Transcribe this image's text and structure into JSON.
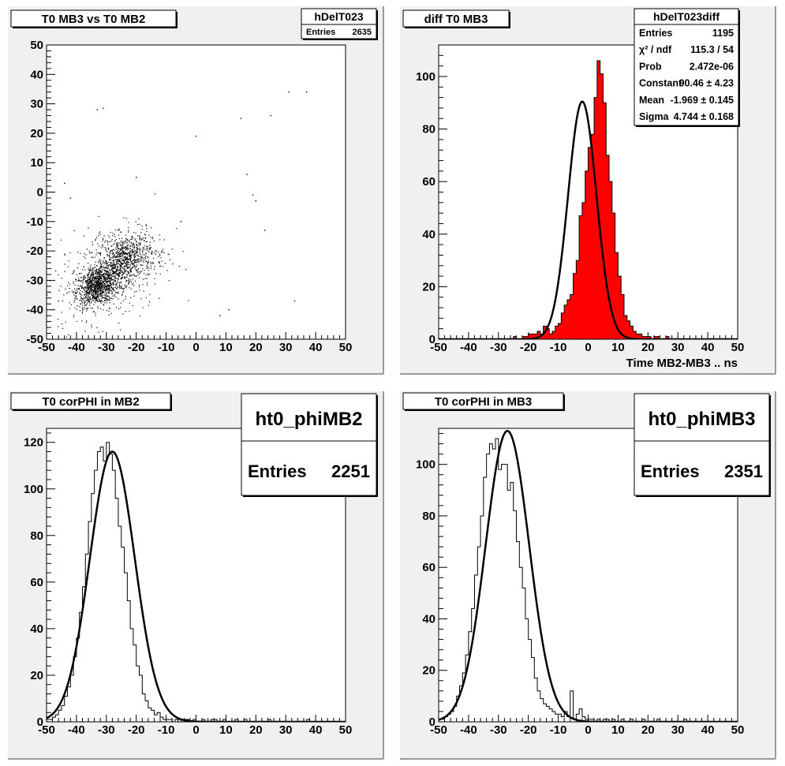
{
  "chart_data": [
    {
      "type": "scatter",
      "title": "T0 MB3 vs T0 MB2",
      "xlim": [
        -50,
        50
      ],
      "ylim": [
        -50,
        50
      ],
      "xticks": [
        -50,
        -40,
        -30,
        -20,
        -10,
        0,
        10,
        20,
        30,
        40,
        50
      ],
      "yticks": [
        -50,
        -40,
        -30,
        -20,
        -10,
        0,
        10,
        20,
        30,
        40,
        50
      ],
      "stats": {
        "name": "hDelT023",
        "rows": [
          {
            "label": "Entries",
            "value": "2635"
          }
        ]
      },
      "clusters": [
        {
          "mean_x": -33,
          "mean_y": -32,
          "sigma": 3.5,
          "count": 900
        },
        {
          "mean_x": -24,
          "mean_y": -23,
          "sigma": 4.5,
          "count": 700
        },
        {
          "mean_x": -28,
          "mean_y": -27,
          "sigma": 9,
          "count": 500
        }
      ],
      "outliers": [
        [
          -33,
          28
        ],
        [
          -31,
          28.5
        ],
        [
          -44,
          3
        ],
        [
          -42,
          -2
        ],
        [
          -20,
          5
        ],
        [
          0,
          19
        ],
        [
          17,
          6
        ],
        [
          19,
          -1
        ],
        [
          25,
          26
        ],
        [
          31,
          34
        ],
        [
          37,
          34
        ],
        [
          33,
          -37
        ],
        [
          15,
          25
        ],
        [
          23,
          -13
        ],
        [
          20,
          -3
        ],
        [
          -5,
          -10
        ],
        [
          8,
          -42
        ],
        [
          -46,
          -37
        ],
        [
          11,
          -40
        ]
      ]
    },
    {
      "type": "bar",
      "title": "diff T0 MB3",
      "xlabel": "Time MB2-MB3  ..  ns",
      "xlim": [
        -50,
        50
      ],
      "ylim": [
        0,
        112
      ],
      "xticks": [
        -50,
        -40,
        -30,
        -20,
        -10,
        0,
        10,
        20,
        30,
        40,
        50
      ],
      "yticks": [
        0,
        20,
        40,
        60,
        80,
        100
      ],
      "bin_width": 1,
      "bin_edges_start": -50,
      "values": [
        0,
        0,
        0,
        0,
        0,
        0,
        0,
        0,
        0,
        0,
        0,
        0,
        0,
        0,
        0,
        0,
        0,
        0,
        0,
        0,
        0,
        0,
        0,
        0,
        0,
        1,
        0,
        0,
        1,
        1,
        2,
        2,
        2,
        3,
        2,
        5,
        4,
        2,
        3,
        5,
        6,
        10,
        13,
        15,
        17,
        25,
        30,
        47,
        52,
        64,
        73,
        78,
        92,
        106,
        101,
        90,
        70,
        60,
        48,
        33,
        24,
        17,
        9,
        7,
        5,
        3,
        2,
        2,
        1,
        1,
        1,
        0,
        1,
        1,
        0,
        0,
        1,
        0,
        0,
        0,
        0,
        0,
        0,
        0,
        0,
        0,
        0,
        0,
        0,
        0,
        0,
        0,
        0,
        0,
        0,
        0,
        0,
        0,
        0,
        0
      ],
      "fit": {
        "constant": 90.46,
        "mean": -1.969,
        "sigma": 4.744
      },
      "stats": {
        "name": "hDelT023diff",
        "rows": [
          {
            "label": "Entries",
            "value": "1195"
          },
          {
            "label": "χ² / ndf",
            "value": "115.3 / 54"
          },
          {
            "label": "Prob",
            "value": "2.472e-06"
          },
          {
            "label": "Constant",
            "value": "90.46 ± 4.23"
          },
          {
            "label": "Mean",
            "value": "-1.969 ± 0.145"
          },
          {
            "label": "Sigma",
            "value": "4.744 ± 0.168"
          }
        ]
      }
    },
    {
      "type": "bar",
      "title": "T0 corPHI in MB2",
      "xlim": [
        -50,
        50
      ],
      "ylim": [
        0,
        126
      ],
      "xticks": [
        -50,
        -40,
        -30,
        -20,
        -10,
        0,
        10,
        20,
        30,
        40,
        50
      ],
      "yticks": [
        0,
        20,
        40,
        60,
        80,
        100,
        120
      ],
      "bin_width": 1,
      "bin_edges_start": -50,
      "values": [
        1,
        1,
        2,
        3,
        5,
        7,
        11,
        15,
        20,
        28,
        36,
        47,
        58,
        72,
        86,
        98,
        108,
        116,
        118,
        112,
        120,
        115,
        108,
        96,
        84,
        75,
        64,
        52,
        40,
        33,
        24,
        20,
        12,
        9,
        6,
        5,
        3,
        4,
        2,
        1,
        1,
        1,
        0,
        1,
        1,
        0,
        1,
        1,
        0,
        1,
        0,
        0,
        1,
        0,
        0,
        1,
        1,
        0,
        0,
        1,
        0,
        0,
        0,
        1,
        0,
        0,
        1,
        0,
        0,
        0,
        0,
        0,
        0,
        0,
        1,
        0,
        0,
        0,
        0,
        0,
        0,
        0,
        0,
        0,
        0,
        0,
        0,
        1,
        0,
        0,
        0,
        0,
        0,
        0,
        0,
        0,
        0,
        0,
        0,
        0
      ],
      "fit": {
        "constant": 116,
        "mean": -28,
        "sigma": 7.5
      },
      "stats": {
        "name": "ht0_phiMB2",
        "rows": [
          {
            "label": "Entries",
            "value": "2251"
          }
        ]
      }
    },
    {
      "type": "bar",
      "title": "T0 corPHI in MB3",
      "xlim": [
        -50,
        50
      ],
      "ylim": [
        0,
        114
      ],
      "xticks": [
        -50,
        -40,
        -30,
        -20,
        -10,
        0,
        10,
        20,
        30,
        40,
        50
      ],
      "yticks": [
        0,
        20,
        40,
        60,
        80,
        100
      ],
      "bin_width": 1,
      "bin_edges_start": -50,
      "values": [
        1,
        1,
        2,
        3,
        4,
        6,
        10,
        14,
        19,
        26,
        35,
        44,
        57,
        68,
        80,
        95,
        104,
        108,
        106,
        110,
        98,
        100,
        100,
        90,
        93,
        82,
        70,
        60,
        52,
        40,
        32,
        25,
        17,
        12,
        9,
        7,
        6,
        5,
        4,
        3,
        3,
        2,
        4,
        2,
        12,
        1,
        3,
        5,
        2,
        1,
        1,
        1,
        0,
        1,
        0,
        1,
        1,
        0,
        1,
        0,
        0,
        1,
        0,
        0,
        1,
        0,
        0,
        0,
        1,
        0,
        0,
        0,
        0,
        1,
        0,
        0,
        0,
        0,
        0,
        0,
        0,
        0,
        1,
        0,
        0,
        0,
        0,
        0,
        0,
        0,
        0,
        0,
        0,
        0,
        0,
        0,
        0,
        0,
        0,
        0
      ],
      "fit": {
        "constant": 113,
        "mean": -27,
        "sigma": 7.3
      },
      "stats": {
        "name": "ht0_phiMB3",
        "rows": [
          {
            "label": "Entries",
            "value": "2351"
          }
        ]
      }
    }
  ]
}
